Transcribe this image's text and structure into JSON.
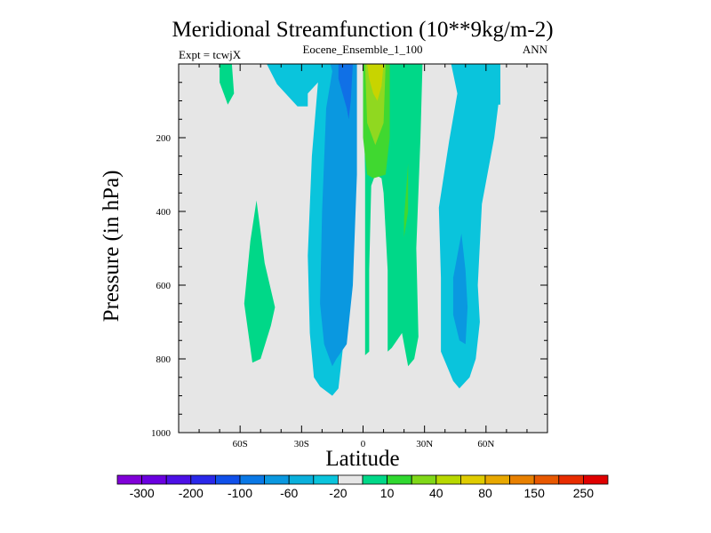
{
  "chart_data": {
    "type": "contour",
    "title": "Meridional Streamfunction (10**9kg/m-2)",
    "center_label": "Eocene_Ensemble_1_100",
    "left_label": "Expt = tcwjX",
    "right_label": "ANN",
    "xlabel": "Latitude",
    "ylabel": "Pressure (in hPa)",
    "xlim": [
      -90,
      90
    ],
    "ylim": [
      1000,
      0
    ],
    "x_ticks": [
      {
        "value": -60,
        "label": "60S"
      },
      {
        "value": -30,
        "label": "30S"
      },
      {
        "value": 0,
        "label": "0"
      },
      {
        "value": 30,
        "label": "30N"
      },
      {
        "value": 60,
        "label": "60N"
      }
    ],
    "y_ticks": [
      {
        "value": 200,
        "label": "200"
      },
      {
        "value": 400,
        "label": "400"
      },
      {
        "value": 600,
        "label": "600"
      },
      {
        "value": 800,
        "label": "800"
      },
      {
        "value": 1000,
        "label": "1000"
      }
    ],
    "background_color": "#e6e6e6",
    "colorbar": {
      "colors": [
        "#8000d8",
        "#6a00e0",
        "#4c10e6",
        "#2a28ea",
        "#1050ea",
        "#0a78e6",
        "#0a98e0",
        "#0ab0dc",
        "#0ac4dc",
        "#e6e6e6",
        "#00d888",
        "#30d830",
        "#80d818",
        "#b8d800",
        "#e0cc00",
        "#e8a800",
        "#e88000",
        "#e85800",
        "#e82c00",
        "#e00000"
      ],
      "labels": [
        {
          "after_index": 0,
          "text": "-300"
        },
        {
          "after_index": 2,
          "text": "-200"
        },
        {
          "after_index": 4,
          "text": "-100"
        },
        {
          "after_index": 6,
          "text": "-60"
        },
        {
          "after_index": 8,
          "text": "-20"
        },
        {
          "after_index": 10,
          "text": "10"
        },
        {
          "after_index": 12,
          "text": "40"
        },
        {
          "after_index": 14,
          "text": "80"
        },
        {
          "after_index": 16,
          "text": "150"
        },
        {
          "after_index": 18,
          "text": "250"
        }
      ]
    },
    "regions": [
      {
        "name": "sh-upper-positive-cell",
        "level": 10,
        "color": "#00d888",
        "points": [
          [
            -70,
            0
          ],
          [
            -64,
            0
          ],
          [
            -63,
            80
          ],
          [
            -66,
            110
          ],
          [
            -70,
            50
          ]
        ]
      },
      {
        "name": "sh-midlat-positive-cell",
        "level": 10,
        "color": "#00d888",
        "points": [
          [
            -52,
            370
          ],
          [
            -55,
            480
          ],
          [
            -58,
            650
          ],
          [
            -54,
            810
          ],
          [
            -50,
            800
          ],
          [
            -45,
            710
          ],
          [
            -43,
            660
          ],
          [
            -48,
            540
          ],
          [
            -52,
            370
          ]
        ]
      },
      {
        "name": "sh-negative-cell-outer",
        "level": -20,
        "color": "#0ac4dc",
        "points": [
          [
            -47,
            0
          ],
          [
            -5,
            0
          ],
          [
            -5,
            300
          ],
          [
            -7,
            600
          ],
          [
            -10,
            780
          ],
          [
            -12,
            880
          ],
          [
            -15,
            900
          ],
          [
            -21,
            875
          ],
          [
            -24,
            850
          ],
          [
            -26,
            730
          ],
          [
            -27,
            520
          ],
          [
            -25,
            250
          ],
          [
            -22,
            50
          ],
          [
            -27,
            80
          ],
          [
            -27,
            115
          ],
          [
            -32,
            115
          ],
          [
            -42,
            55
          ]
        ]
      },
      {
        "name": "sh-negative-cell-inner",
        "level": -60,
        "color": "#0a98e0",
        "points": [
          [
            -16,
            0
          ],
          [
            -3,
            0
          ],
          [
            -3,
            300
          ],
          [
            -5,
            600
          ],
          [
            -8,
            760
          ],
          [
            -13,
            800
          ],
          [
            -15,
            820
          ],
          [
            -19,
            760
          ],
          [
            -21,
            650
          ],
          [
            -20,
            400
          ],
          [
            -18,
            120
          ],
          [
            -15,
            20
          ]
        ]
      },
      {
        "name": "sh-negative-core",
        "level": -100,
        "color": "#1070e6",
        "points": [
          [
            -12,
            0
          ],
          [
            -5,
            0
          ],
          [
            -6,
            100
          ],
          [
            -7,
            150
          ],
          [
            -8,
            120
          ],
          [
            -10,
            80
          ],
          [
            -12,
            40
          ]
        ]
      },
      {
        "name": "nh-positive-cell-outer",
        "level": 10,
        "color": "#00d888",
        "points": [
          [
            0,
            0
          ],
          [
            29,
            0
          ],
          [
            28,
            200
          ],
          [
            26,
            500
          ],
          [
            27,
            740
          ],
          [
            25,
            800
          ],
          [
            22,
            820
          ],
          [
            19,
            730
          ],
          [
            14,
            770
          ],
          [
            12,
            780
          ],
          [
            12,
            560
          ],
          [
            10,
            350
          ],
          [
            9,
            310
          ],
          [
            6,
            300
          ],
          [
            4,
            330
          ],
          [
            3,
            560
          ],
          [
            3,
            780
          ],
          [
            1,
            790
          ],
          [
            1,
            300
          ]
        ]
      },
      {
        "name": "nh-positive-cell-green",
        "level": 40,
        "color": "#40d830",
        "points": [
          [
            0,
            0
          ],
          [
            13,
            0
          ],
          [
            13,
            200
          ],
          [
            11,
            300
          ],
          [
            5,
            310
          ],
          [
            2,
            300
          ],
          [
            0,
            200
          ]
        ]
      },
      {
        "name": "nh-subtrop-green-sliver",
        "level": 40,
        "color": "#40d830",
        "points": [
          [
            22,
            270
          ],
          [
            20,
            420
          ],
          [
            20,
            470
          ],
          [
            22,
            400
          ]
        ]
      },
      {
        "name": "nh-positive-cell-lime",
        "level": 80,
        "color": "#90d820",
        "points": [
          [
            1,
            0
          ],
          [
            11,
            0
          ],
          [
            10,
            160
          ],
          [
            6,
            220
          ],
          [
            2,
            160
          ]
        ]
      },
      {
        "name": "nh-positive-core",
        "level": 80,
        "color": "#c8d400",
        "points": [
          [
            2,
            0
          ],
          [
            10,
            0
          ],
          [
            9,
            60
          ],
          [
            7,
            100
          ],
          [
            5,
            80
          ],
          [
            3,
            40
          ]
        ]
      },
      {
        "name": "nh-negative-cell-outer",
        "level": -20,
        "color": "#0ac4dc",
        "points": [
          [
            76,
            0
          ],
          [
            67,
            0
          ],
          [
            67,
            110
          ],
          [
            66,
            110
          ],
          [
            64,
            200
          ],
          [
            58,
            380
          ],
          [
            56,
            600
          ],
          [
            57,
            700
          ],
          [
            55,
            800
          ],
          [
            52,
            850
          ],
          [
            47,
            880
          ],
          [
            44,
            860
          ],
          [
            38,
            780
          ],
          [
            38,
            580
          ],
          [
            37,
            390
          ],
          [
            42,
            210
          ],
          [
            46,
            80
          ],
          [
            43,
            0
          ]
        ]
      },
      {
        "name": "nh-negative-cell-inner",
        "level": -60,
        "color": "#0a98e0",
        "points": [
          [
            48,
            460
          ],
          [
            44,
            580
          ],
          [
            44,
            680
          ],
          [
            47,
            750
          ],
          [
            50,
            760
          ],
          [
            51,
            660
          ],
          [
            50,
            560
          ]
        ]
      }
    ]
  }
}
